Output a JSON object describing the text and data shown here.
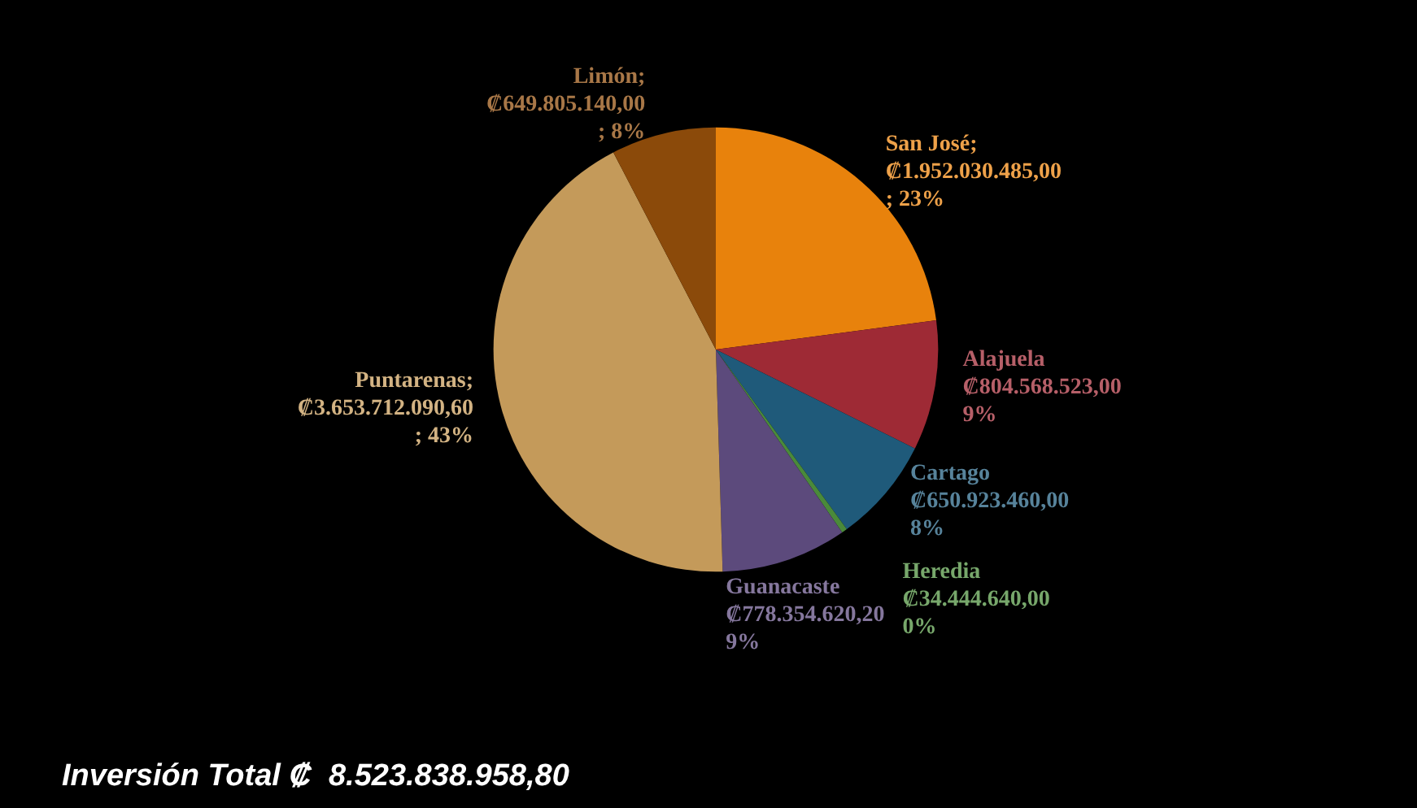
{
  "chart_data": {
    "type": "pie",
    "categories": [
      "San José",
      "Alajuela",
      "Cartago",
      "Heredia",
      "Guanacaste",
      "Puntarenas",
      "Limón"
    ],
    "values": [
      1952030485.0,
      804568523.0,
      650923460.0,
      34444640.0,
      778354620.2,
      3653712090.6,
      649805140.0
    ],
    "colors": [
      "#e8820c",
      "#9e2a35",
      "#1f5a7a",
      "#4a8a3a",
      "#5c4a7c",
      "#c49a5a",
      "#8b4a0a"
    ],
    "value_labels": [
      "; ₡1.952.030.485,00 ; 23%",
      "₡804.568.523,00 9%",
      "₡650.923.460,00 8%",
      "₡34.444.640,00 0%",
      "₡778.354.620,20 9%",
      "; ₡3.653.712.090,60 ; 43%",
      "; ₡649.805.140,00 ; 8%"
    ],
    "annotations": [
      "Inversión Total ₡  8.523.838.958,80"
    ]
  }
}
